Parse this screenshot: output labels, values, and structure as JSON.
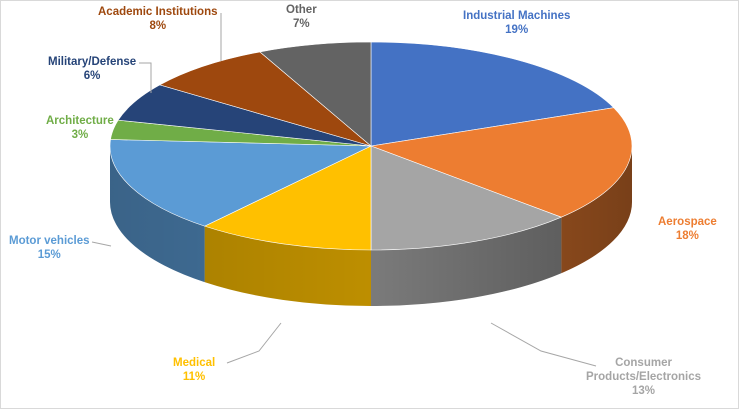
{
  "chart_data": {
    "type": "pie",
    "title": "",
    "categories": [
      "Industrial Machines",
      "Aerospace",
      "Consumer Products/Electronics",
      "Medical",
      "Motor vehicles",
      "Architecture",
      "Military/Defense",
      "Academic Institutions",
      "Other"
    ],
    "values": [
      19,
      18,
      13,
      11,
      15,
      3,
      6,
      8,
      7
    ],
    "value_labels": [
      "19%",
      "18%",
      "13%",
      "11%",
      "15%",
      "3%",
      "6%",
      "8%",
      "7%"
    ],
    "label_lines": [
      [
        "Industrial Machines"
      ],
      [
        "Aerospace"
      ],
      [
        "Consumer",
        "Products/Electronics"
      ],
      [
        "Medical"
      ],
      [
        "Motor vehicles"
      ],
      [
        "Architecture"
      ],
      [
        "Military/Defense"
      ],
      [
        "Academic Institutions"
      ],
      [
        "Other"
      ]
    ],
    "colors": [
      "#4472c4",
      "#ed7d31",
      "#a5a5a5",
      "#ffc000",
      "#5b9bd5",
      "#70ad47",
      "#264478",
      "#9e480e",
      "#636363"
    ],
    "label_colors": [
      "#4472c4",
      "#ed7d31",
      "#a5a5a5",
      "#ffc000",
      "#5b9bd5",
      "#70ad47",
      "#264478",
      "#9e480e",
      "#636363"
    ],
    "style": "3d",
    "legend": "none"
  }
}
